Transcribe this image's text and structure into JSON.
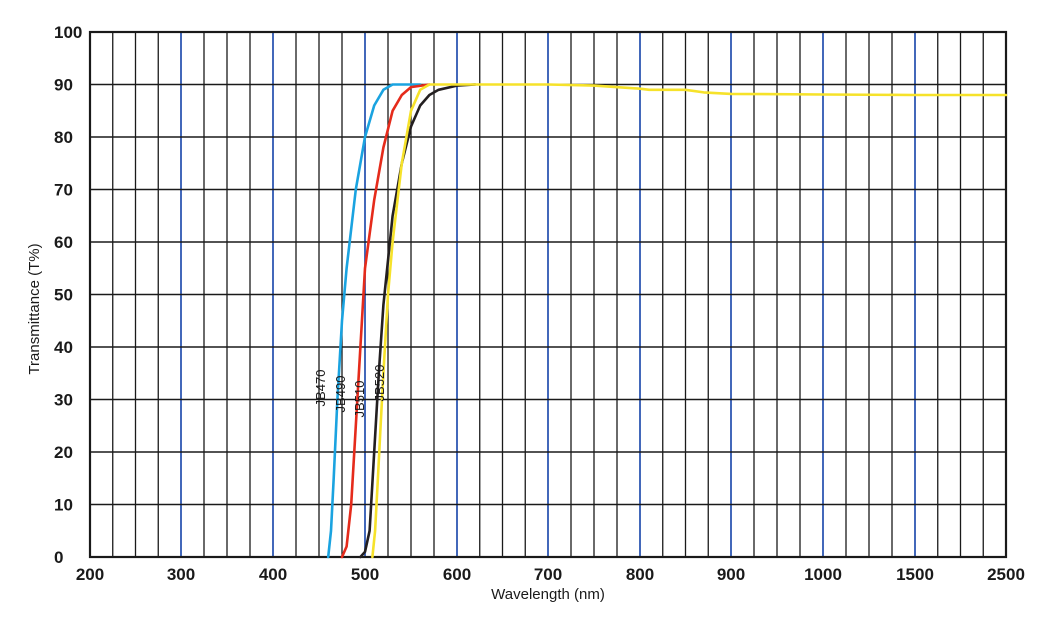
{
  "chart_data": {
    "type": "line",
    "title": "",
    "xlabel": "Wavelength (nm)",
    "ylabel": "Transmittance (T%)",
    "x_tick_labels": [
      "200",
      "300",
      "400",
      "500",
      "600",
      "700",
      "800",
      "900",
      "1000",
      "1500",
      "2500"
    ],
    "y_tick_labels": [
      "0",
      "10",
      "20",
      "30",
      "40",
      "50",
      "60",
      "70",
      "80",
      "90",
      "100"
    ],
    "ylim": [
      0,
      100
    ],
    "grid": true,
    "series": [
      {
        "name": "JB470",
        "color": "#1aa3e0",
        "points": [
          [
            460,
            0
          ],
          [
            463,
            5
          ],
          [
            466,
            15
          ],
          [
            470,
            30
          ],
          [
            475,
            45
          ],
          [
            480,
            55
          ],
          [
            490,
            70
          ],
          [
            500,
            80
          ],
          [
            510,
            86
          ],
          [
            520,
            89
          ],
          [
            530,
            90
          ],
          [
            560,
            90
          ]
        ]
      },
      {
        "name": "JB490",
        "color": "#e52b1b",
        "points": [
          [
            475,
            0
          ],
          [
            480,
            2
          ],
          [
            485,
            10
          ],
          [
            490,
            25
          ],
          [
            495,
            40
          ],
          [
            500,
            55
          ],
          [
            510,
            68
          ],
          [
            520,
            78
          ],
          [
            530,
            85
          ],
          [
            540,
            88
          ],
          [
            550,
            89.5
          ],
          [
            570,
            90
          ]
        ]
      },
      {
        "name": "JB510",
        "color": "#231f20",
        "points": [
          [
            495,
            0
          ],
          [
            500,
            1
          ],
          [
            505,
            5
          ],
          [
            510,
            20
          ],
          [
            515,
            35
          ],
          [
            520,
            48
          ],
          [
            530,
            65
          ],
          [
            540,
            75
          ],
          [
            550,
            82
          ],
          [
            560,
            86
          ],
          [
            570,
            88
          ],
          [
            580,
            89
          ],
          [
            600,
            89.8
          ],
          [
            620,
            90
          ]
        ]
      },
      {
        "name": "JB520",
        "color": "#f6e22a",
        "points": [
          [
            508,
            0
          ],
          [
            511,
            5
          ],
          [
            514,
            15
          ],
          [
            517,
            25
          ],
          [
            520,
            35
          ],
          [
            525,
            50
          ],
          [
            530,
            60
          ],
          [
            540,
            75
          ],
          [
            550,
            85
          ],
          [
            560,
            89
          ],
          [
            570,
            90
          ],
          [
            600,
            90
          ],
          [
            700,
            90
          ],
          [
            750,
            89.8
          ],
          [
            800,
            89.2
          ],
          [
            810,
            89
          ],
          [
            850,
            89
          ],
          [
            870,
            88.5
          ],
          [
            900,
            88.2
          ],
          [
            1000,
            88.1
          ],
          [
            1500,
            88
          ],
          [
            2500,
            88
          ]
        ]
      }
    ],
    "colors": {
      "grid_major": "#2e57b3",
      "grid_minor": "#1a1a1a"
    }
  }
}
